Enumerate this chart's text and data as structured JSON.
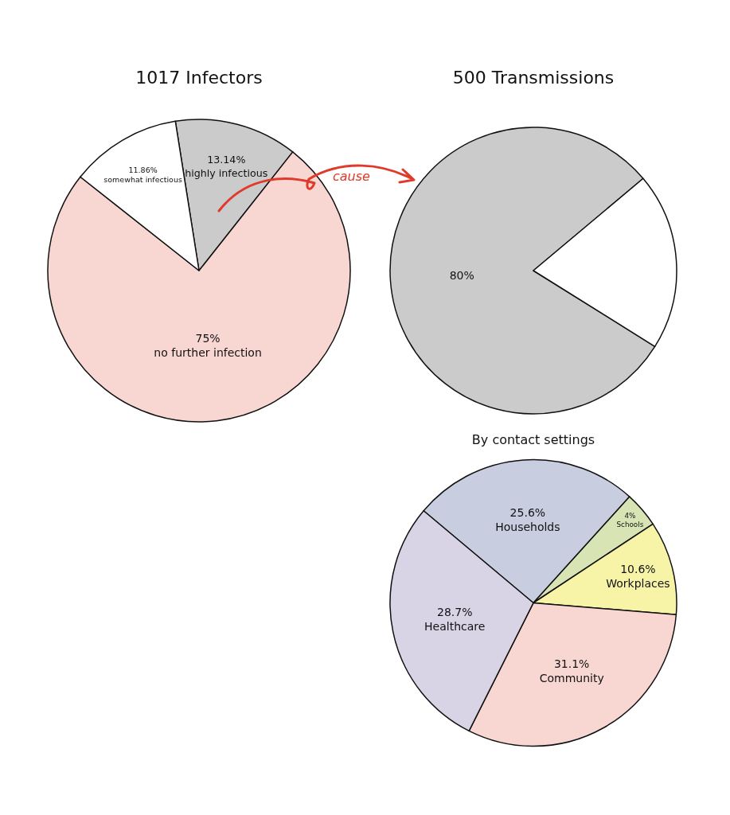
{
  "chart_data": [
    {
      "type": "pie",
      "title": "1017 Infectors",
      "categories": [
        "highly infectious",
        "no further infection",
        "somewhat infectious"
      ],
      "values": [
        13.14,
        75,
        11.86
      ],
      "value_labels": [
        "13.14%",
        "75%",
        "11.86%"
      ],
      "colors": [
        "#cbcbcb",
        "#f8d7d3",
        "#ffffff"
      ],
      "annotations": [
        "cause"
      ]
    },
    {
      "type": "pie",
      "title": "500 Transmissions",
      "categories": [
        null,
        null
      ],
      "values": [
        80,
        20
      ],
      "value_labels": [
        "80%",
        null
      ],
      "colors": [
        "#cbcbcb",
        "#ffffff"
      ]
    },
    {
      "type": "pie",
      "title": "By contact settings",
      "categories": [
        "Households",
        "Schools",
        "Workplaces",
        "Community",
        "Healthcare"
      ],
      "values": [
        25.6,
        4,
        10.6,
        31.1,
        28.7
      ],
      "value_labels": [
        "25.6%",
        "4%",
        "10.6%",
        "31.1%",
        "28.7%"
      ],
      "colors": [
        "#c9cde0",
        "#d9e4b5",
        "#f7f4a8",
        "#f8d7d3",
        "#d8d4e6"
      ]
    }
  ]
}
